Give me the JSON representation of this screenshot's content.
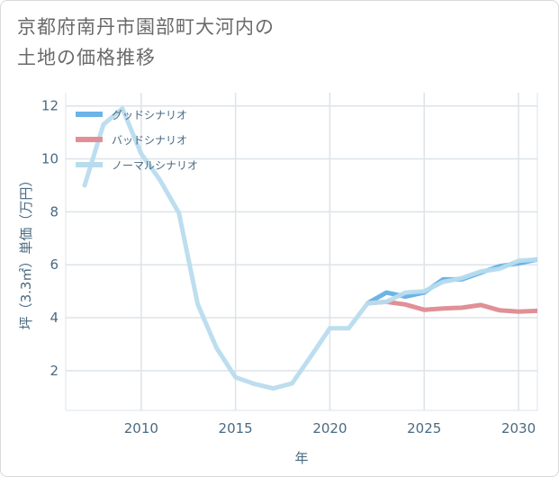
{
  "title_line1": "京都府南丹市園部町大河内の",
  "title_line2": "土地の価格推移",
  "chart_data": {
    "type": "line",
    "xlabel": "年",
    "ylabel": "坪（3.3㎡）単価（万円）",
    "xlim": [
      2006,
      2031
    ],
    "ylim": [
      0.5,
      12.5
    ],
    "x_ticks": [
      2010,
      2015,
      2020,
      2025,
      2030
    ],
    "y_ticks": [
      2,
      4,
      6,
      8,
      10,
      12
    ],
    "grid": true,
    "legend_position": "top-left",
    "series": [
      {
        "name": "グッドシナリオ",
        "color": "#6ab4e8",
        "x": [
          2022,
          2023,
          2024,
          2025,
          2026,
          2027,
          2028,
          2029,
          2030,
          2031
        ],
        "y": [
          4.55,
          4.95,
          4.8,
          4.95,
          5.45,
          5.45,
          5.7,
          5.95,
          6.05,
          6.2
        ]
      },
      {
        "name": "バッドシナリオ",
        "color": "#e09096",
        "x": [
          2022,
          2023,
          2024,
          2025,
          2026,
          2027,
          2028,
          2029,
          2030,
          2031
        ],
        "y": [
          4.55,
          4.6,
          4.5,
          4.3,
          4.35,
          4.38,
          4.48,
          4.28,
          4.23,
          4.26
        ]
      },
      {
        "name": "ノーマルシナリオ",
        "color": "#b8dcee",
        "x": [
          2007,
          2008,
          2009,
          2010,
          2011,
          2012,
          2013,
          2014,
          2015,
          2016,
          2017,
          2018,
          2019,
          2020,
          2021,
          2022,
          2023,
          2024,
          2025,
          2026,
          2027,
          2028,
          2029,
          2030,
          2031
        ],
        "y": [
          9.0,
          11.3,
          11.9,
          10.2,
          9.2,
          7.95,
          4.5,
          2.85,
          1.75,
          1.5,
          1.33,
          1.52,
          2.55,
          3.6,
          3.6,
          4.55,
          4.6,
          4.95,
          5.0,
          5.35,
          5.5,
          5.75,
          5.85,
          6.15,
          6.2
        ]
      }
    ]
  }
}
